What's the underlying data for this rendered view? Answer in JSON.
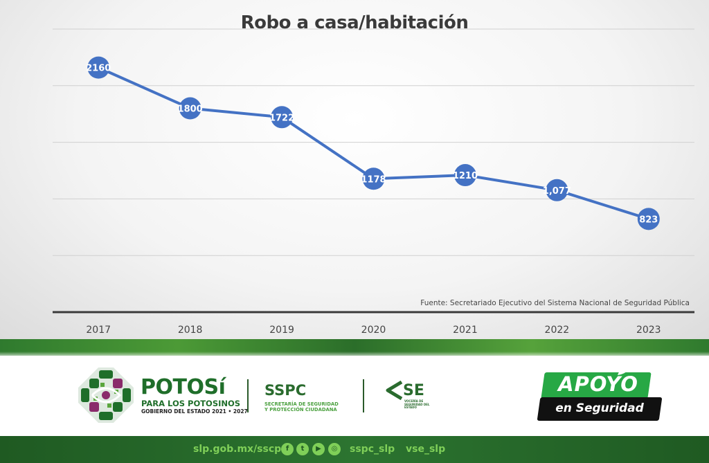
{
  "chart_data": {
    "type": "line",
    "title": "Robo a casa/habitación",
    "categories": [
      "2017",
      "2018",
      "2019",
      "2020",
      "2021",
      "2022",
      "2023"
    ],
    "series": [
      {
        "values": [
          2160,
          1800,
          1722,
          1178,
          1210,
          1077,
          823
        ],
        "labels": [
          "2160",
          "1800",
          "1722",
          "1178",
          "1210",
          "1,077",
          "823"
        ],
        "color": "#4472c4"
      }
    ],
    "ylim": [
      0,
      2500
    ],
    "grid": true,
    "y_tick_labels_visible": false,
    "xlabel": "",
    "ylabel": "",
    "source": "Fuente: Secretariado Ejecutivo del Sistema Nacional de Seguridad Pública"
  },
  "branding": {
    "potosi": {
      "name": "POTOSí",
      "tagline": "PARA LOS POTOSINOS",
      "sub": "GOBIERNO DEL ESTADO 2021 • 2027"
    },
    "sspc": {
      "name": "SSPC",
      "line1": "SECRETARÍA DE SEGURIDAD",
      "line2": "Y PROTECCIÓN CIUDADANA"
    },
    "vse": {
      "name": "SE",
      "sub": "VOCERÍA DE SEGURIDAD DEL ESTADO"
    },
    "apoyo": {
      "top": "APOYO",
      "bottom": "en Seguridad"
    }
  },
  "footer": {
    "website": "slp.gob.mx/sscp",
    "handle1": "sspc_slp",
    "handle2": "vse_slp",
    "social_icons": [
      "facebook-icon",
      "twitter-icon",
      "youtube-icon",
      "instagram-icon"
    ]
  },
  "colors": {
    "line": "#4472c4",
    "brand_green": "#2a6b2e",
    "apoyo_green": "#27a845"
  }
}
